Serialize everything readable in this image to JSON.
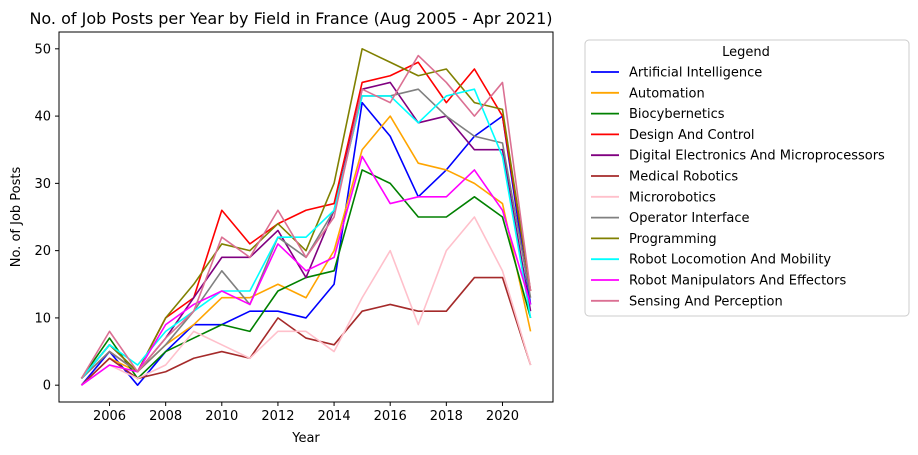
{
  "chart_data": {
    "type": "line",
    "title": "No. of Job Posts per Year by Field in France (Aug 2005 - Apr 2021)",
    "xlabel": "Year",
    "ylabel": "No. of Job Posts",
    "xlim": [
      2004.2,
      2021.8
    ],
    "ylim": [
      -2.5,
      52.5
    ],
    "xticks": [
      2006,
      2008,
      2010,
      2012,
      2014,
      2016,
      2018,
      2020
    ],
    "yticks": [
      0,
      10,
      20,
      30,
      40,
      50
    ],
    "grid": false,
    "legend": {
      "title": "Legend",
      "placement": "outside-right"
    },
    "x": [
      2005,
      2006,
      2007,
      2008,
      2009,
      2010,
      2011,
      2012,
      2013,
      2014,
      2015,
      2016,
      2017,
      2018,
      2019,
      2020,
      2021
    ],
    "series": [
      {
        "name": "Artificial Intelligence",
        "color": "#0000ff",
        "values": [
          0,
          5,
          0,
          5,
          9,
          9,
          11,
          11,
          10,
          15,
          42,
          37,
          28,
          32,
          37,
          40,
          12
        ]
      },
      {
        "name": "Automation",
        "color": "#ffa500",
        "values": [
          0,
          4,
          2,
          6,
          9,
          13,
          13,
          15,
          13,
          20,
          35,
          40,
          33,
          32,
          30,
          27,
          8
        ]
      },
      {
        "name": "Biocybernetics",
        "color": "#008000",
        "values": [
          1,
          7,
          1,
          5,
          7,
          9,
          8,
          14,
          16,
          17,
          32,
          30,
          25,
          25,
          28,
          25,
          10
        ]
      },
      {
        "name": "Design And Control",
        "color": "#ff0000",
        "values": [
          1,
          5,
          2,
          10,
          13,
          26,
          21,
          24,
          26,
          27,
          45,
          46,
          48,
          42,
          47,
          40,
          14
        ]
      },
      {
        "name": "Digital Electronics And Microprocessors",
        "color": "#800080",
        "values": [
          1,
          6,
          2,
          7,
          13,
          19,
          19,
          23,
          16,
          26,
          44,
          45,
          39,
          40,
          35,
          35,
          11
        ]
      },
      {
        "name": "Medical Robotics",
        "color": "#a52a2a",
        "values": [
          0,
          4,
          1,
          2,
          4,
          5,
          4,
          10,
          7,
          6,
          11,
          12,
          11,
          11,
          16,
          16,
          3
        ]
      },
      {
        "name": "Microrobotics",
        "color": "#ffc0cb",
        "values": [
          0,
          3,
          1,
          3,
          8,
          6,
          4,
          8,
          8,
          5,
          13,
          20,
          9,
          20,
          25,
          17,
          3
        ]
      },
      {
        "name": "Operator Interface",
        "color": "#808080",
        "values": [
          1,
          5,
          2,
          6,
          11,
          17,
          12,
          22,
          19,
          26,
          43,
          43,
          44,
          40,
          37,
          36,
          13
        ]
      },
      {
        "name": "Programming",
        "color": "#808000",
        "values": [
          1,
          6,
          2,
          10,
          15,
          21,
          20,
          24,
          20,
          30,
          50,
          48,
          46,
          47,
          42,
          41,
          14
        ]
      },
      {
        "name": "Robot Locomotion And Mobility",
        "color": "#00ffff",
        "values": [
          1,
          6,
          3,
          8,
          11,
          14,
          14,
          22,
          22,
          26,
          43,
          43,
          39,
          43,
          44,
          34,
          10
        ]
      },
      {
        "name": "Robot Manipulators And Effectors",
        "color": "#ff00ff",
        "values": [
          0,
          3,
          2,
          9,
          12,
          14,
          12,
          21,
          17,
          19,
          34,
          27,
          28,
          28,
          32,
          26,
          12
        ]
      },
      {
        "name": "Sensing And Perception",
        "color": "#db7093",
        "values": [
          1,
          8,
          2,
          7,
          11,
          22,
          19,
          26,
          19,
          25,
          44,
          42,
          49,
          45,
          40,
          45,
          14
        ]
      }
    ]
  }
}
